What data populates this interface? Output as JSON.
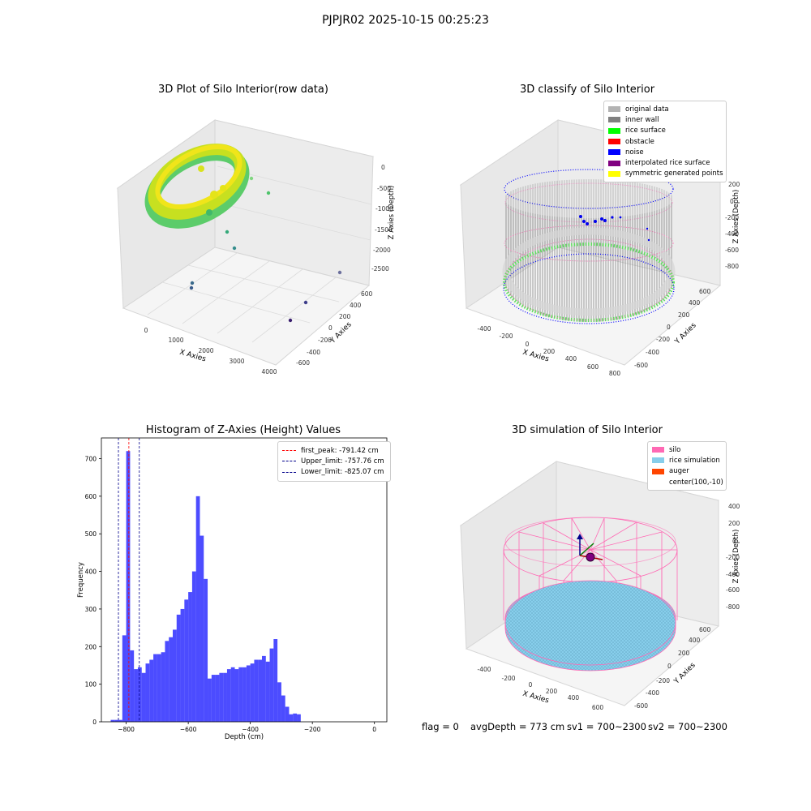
{
  "figure": {
    "suptitle": "PJPJR02 2025-10-15 00:25:23"
  },
  "panels": {
    "raw": {
      "title": "3D Plot of Silo Interior(row data)",
      "xlabel": "X Axies",
      "ylabel": "Y Axies",
      "zlabel": "Z Axies (Depth)",
      "xticks": [
        "0",
        "1000",
        "2000",
        "3000",
        "4000"
      ],
      "yticks": [
        "-600",
        "-400",
        "-200",
        "0",
        "200",
        "400",
        "600"
      ],
      "zticks": [
        "0",
        "-500",
        "-1000",
        "-1500",
        "-2000",
        "-2500"
      ]
    },
    "classify": {
      "title": "3D classify of Silo Interior",
      "xlabel": "X Axies",
      "ylabel": "Y Axies",
      "zlabel": "Z Axies (Depth)",
      "xticks": [
        "-400",
        "-200",
        "0",
        "200",
        "400",
        "600",
        "800"
      ],
      "yticks": [
        "-600",
        "-400",
        "-200",
        "0",
        "200",
        "400",
        "600"
      ],
      "zticks": [
        "200",
        "0",
        "-200",
        "-400",
        "-600",
        "-800"
      ],
      "legend": [
        {
          "label": "original data",
          "color": "#b3b3b3"
        },
        {
          "label": "inner wall",
          "color": "#808080"
        },
        {
          "label": "rice surface",
          "color": "#00ff00"
        },
        {
          "label": "obstacle",
          "color": "#ff0000"
        },
        {
          "label": "noise",
          "color": "#0000ff"
        },
        {
          "label": "interpolated rice surface",
          "color": "#800080"
        },
        {
          "label": "symmetric generated points",
          "color": "#ffff00"
        }
      ]
    },
    "simulation": {
      "title": "3D simulation of Silo Interior",
      "xlabel": "X Axies",
      "ylabel": "Y Axies",
      "zlabel": "Z Axies (Depth)",
      "xticks": [
        "-400",
        "-200",
        "0",
        "200",
        "400",
        "600"
      ],
      "yticks": [
        "-600",
        "-400",
        "-200",
        "0",
        "200",
        "400",
        "600"
      ],
      "zticks": [
        "400",
        "200",
        "0",
        "-200",
        "-400",
        "-600",
        "-800"
      ],
      "legend": [
        {
          "label": "silo",
          "color": "#ff69b4"
        },
        {
          "label": "rice simulation",
          "color": "#87ceeb"
        },
        {
          "label": "auger",
          "color": "#ff4500"
        },
        {
          "label": "center(100,-10)",
          "color": ""
        }
      ]
    }
  },
  "chart_data": {
    "type": "bar",
    "title": "Histogram of Z-Axies (Height) Values",
    "xlabel": "Depth (cm)",
    "ylabel": "Frequency",
    "xlim": [
      -880,
      40
    ],
    "ylim": [
      0,
      755
    ],
    "bin_width": 12.5,
    "xticks": [
      -800,
      -600,
      -400,
      -200,
      0
    ],
    "yticks": [
      0,
      100,
      200,
      300,
      400,
      500,
      600,
      700
    ],
    "bar_color": "#0000ff",
    "bins": [
      {
        "x": -850,
        "count": 5
      },
      {
        "x": -837.5,
        "count": 5
      },
      {
        "x": -825,
        "count": 5
      },
      {
        "x": -812.5,
        "count": 230
      },
      {
        "x": -800,
        "count": 720
      },
      {
        "x": -787.5,
        "count": 190
      },
      {
        "x": -775,
        "count": 140
      },
      {
        "x": -762.5,
        "count": 145
      },
      {
        "x": -750,
        "count": 130
      },
      {
        "x": -737.5,
        "count": 155
      },
      {
        "x": -725,
        "count": 165
      },
      {
        "x": -712.5,
        "count": 180
      },
      {
        "x": -700,
        "count": 180
      },
      {
        "x": -687.5,
        "count": 185
      },
      {
        "x": -675,
        "count": 215
      },
      {
        "x": -662.5,
        "count": 225
      },
      {
        "x": -650,
        "count": 245
      },
      {
        "x": -637.5,
        "count": 285
      },
      {
        "x": -625,
        "count": 300
      },
      {
        "x": -612.5,
        "count": 325
      },
      {
        "x": -600,
        "count": 345
      },
      {
        "x": -587.5,
        "count": 400
      },
      {
        "x": -575,
        "count": 600
      },
      {
        "x": -562.5,
        "count": 495
      },
      {
        "x": -550,
        "count": 380
      },
      {
        "x": -537.5,
        "count": 115
      },
      {
        "x": -525,
        "count": 125
      },
      {
        "x": -512.5,
        "count": 125
      },
      {
        "x": -500,
        "count": 130
      },
      {
        "x": -487.5,
        "count": 130
      },
      {
        "x": -475,
        "count": 140
      },
      {
        "x": -462.5,
        "count": 145
      },
      {
        "x": -450,
        "count": 140
      },
      {
        "x": -437.5,
        "count": 145
      },
      {
        "x": -425,
        "count": 145
      },
      {
        "x": -412.5,
        "count": 150
      },
      {
        "x": -400,
        "count": 155
      },
      {
        "x": -387.5,
        "count": 165
      },
      {
        "x": -375,
        "count": 165
      },
      {
        "x": -362.5,
        "count": 175
      },
      {
        "x": -350,
        "count": 160
      },
      {
        "x": -337.5,
        "count": 195
      },
      {
        "x": -325,
        "count": 220
      },
      {
        "x": -312.5,
        "count": 105
      },
      {
        "x": -300,
        "count": 70
      },
      {
        "x": -287.5,
        "count": 40
      },
      {
        "x": -275,
        "count": 20
      },
      {
        "x": -262.5,
        "count": 22
      },
      {
        "x": -250,
        "count": 20
      }
    ],
    "vlines": [
      {
        "label": "first_peak: -791.42 cm",
        "x": -791.42,
        "color": "#ff0000"
      },
      {
        "label": "Upper_limit: -757.76 cm",
        "x": -757.76,
        "color": "#00008b"
      },
      {
        "label": "Lower_limit: -825.07 cm",
        "x": -825.07,
        "color": "#00008b"
      }
    ]
  },
  "status": {
    "flag": "flag = 0",
    "avg_depth": "avgDepth = 773 cm",
    "sv1": "sv1 = 700~2300",
    "sv2": "sv2 = 700~2300"
  }
}
